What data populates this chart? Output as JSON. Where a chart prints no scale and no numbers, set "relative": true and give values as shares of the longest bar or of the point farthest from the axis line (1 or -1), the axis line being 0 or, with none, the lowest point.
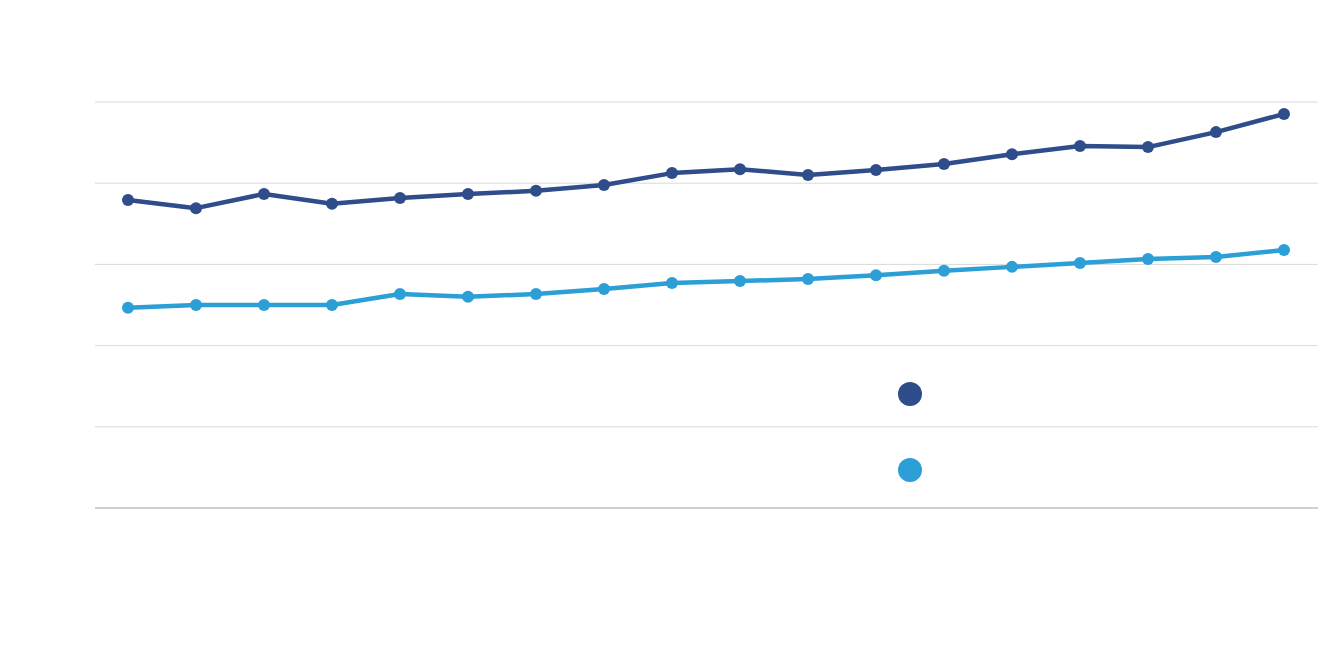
{
  "chart_data": {
    "type": "line",
    "relative": true,
    "grid": "y",
    "marker": "circle",
    "line_style": "solid",
    "categories": [
      null,
      null,
      null,
      null,
      null,
      null,
      null,
      null,
      null,
      null,
      null,
      null,
      null,
      null,
      null,
      null,
      null,
      null
    ],
    "series": [
      {
        "color": "#2e4d8a",
        "values": [
          0.782,
          0.761,
          0.797,
          0.772,
          0.787,
          0.797,
          0.805,
          0.82,
          0.85,
          0.86,
          0.845,
          0.858,
          0.873,
          0.898,
          0.919,
          0.916,
          0.954,
          1
        ]
      },
      {
        "color": "#2b9fd6",
        "values": [
          0.508,
          0.515,
          0.515,
          0.515,
          0.543,
          0.536,
          0.543,
          0.556,
          0.571,
          0.576,
          0.581,
          0.591,
          0.602,
          0.612,
          0.622,
          0.632,
          0.637,
          0.655
        ]
      }
    ]
  }
}
